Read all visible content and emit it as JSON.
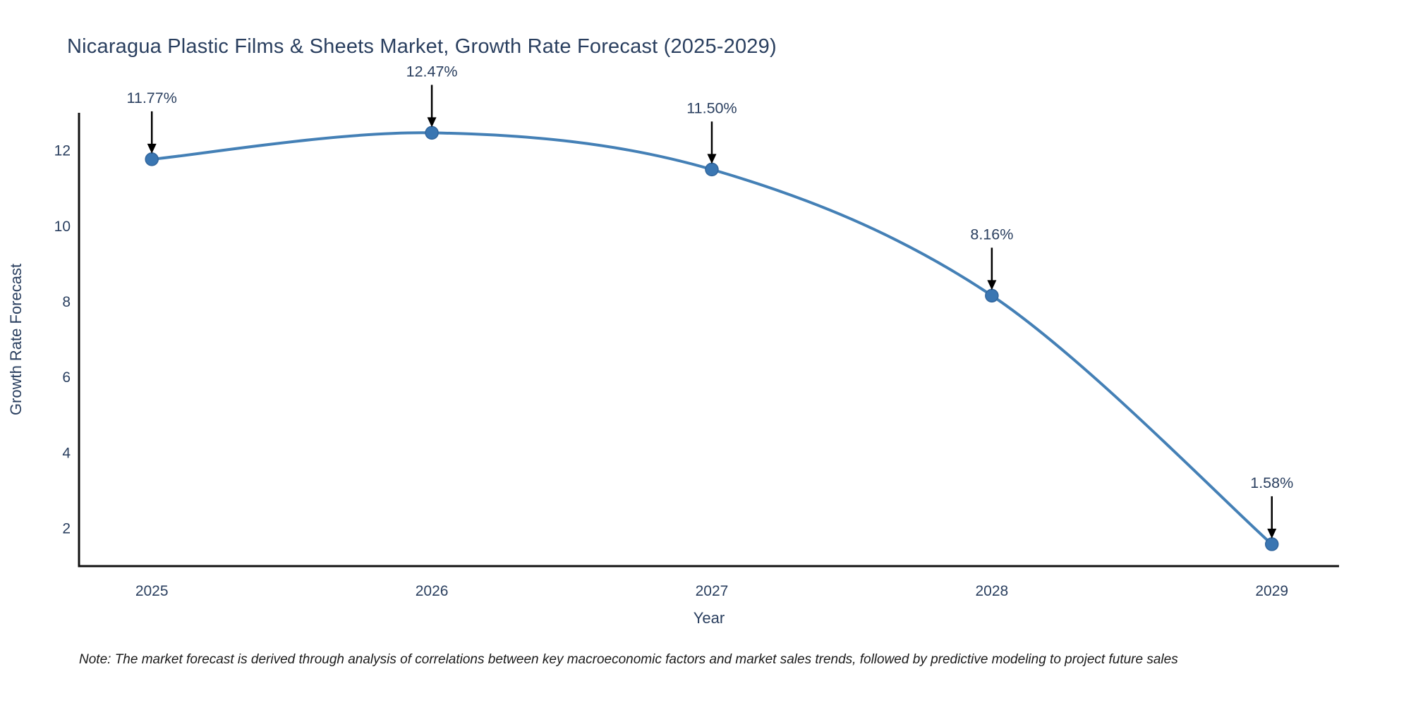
{
  "title": "Nicaragua Plastic Films & Sheets Market, Growth Rate Forecast (2025-2029)",
  "note": "Note: The market forecast is derived through analysis of correlations between key macroeconomic factors and market sales trends, followed by predictive modeling to project future sales",
  "chart_data": {
    "type": "line",
    "line_shape": "spline",
    "x": [
      2025,
      2026,
      2027,
      2028,
      2029
    ],
    "y": [
      11.77,
      12.47,
      11.5,
      8.16,
      1.58
    ],
    "point_labels": [
      "11.77%",
      "12.47%",
      "11.50%",
      "8.16%",
      "1.58%"
    ],
    "title": "Nicaragua Plastic Films & Sheets Market, Growth Rate Forecast (2025-2029)",
    "xlabel": "Year",
    "ylabel": "Growth Rate Forecast",
    "xlim": [
      2024.74,
      2029.24
    ],
    "ylim": [
      1,
      13
    ],
    "xticks": [
      "2025",
      "2026",
      "2027",
      "2028",
      "2029"
    ],
    "yticks": [
      "2",
      "4",
      "6",
      "8",
      "10",
      "12"
    ],
    "grid": false,
    "legend": "none",
    "colors": {
      "line": "#4480b6",
      "marker_fill": "#3a76b2",
      "marker_edge": "#31659c",
      "axis_line": "#111111",
      "tick_text": "#2a3f5f",
      "annotation_text": "#2a3f5f",
      "annotation_arrow": "#000000",
      "background": "#ffffff"
    }
  }
}
